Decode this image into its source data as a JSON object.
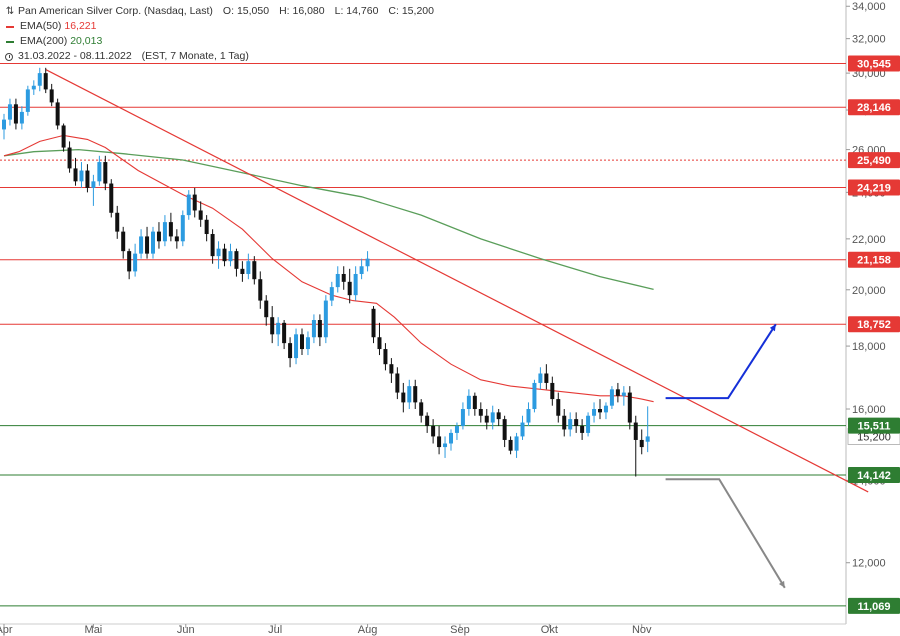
{
  "legend": {
    "instrument": "Pan American Silver Corp. (Nasdaq, Last)",
    "o_label": "O:",
    "o_value": "15,050",
    "h_label": "H:",
    "h_value": "16,080",
    "l_label": "L:",
    "l_value": "14,760",
    "c_label": "C:",
    "c_value": "15,200",
    "ema50_label": "EMA(50)",
    "ema50_value": "16,221",
    "ema200_label": "EMA(200)",
    "ema200_value": "20,013",
    "range": "31.03.2022 - 08.11.2022",
    "range_info": "(EST, 7 Monate, 1 Tag)",
    "icon_chart": "candlestick-icon",
    "icon_clock": "clock-icon"
  },
  "colors": {
    "up": "#2c9be0",
    "down": "#111111",
    "resistance": "#e53935",
    "support": "#2e7d32",
    "ema50": "#e53935",
    "ema200": "#5a9e5a",
    "trend": "#e53935",
    "up_arrow": "#1530d8",
    "down_arrow": "#888888",
    "label_red": "#e53935",
    "label_green": "#2e7d32",
    "axis_text": "#555555"
  },
  "chart_data": {
    "type": "candlestick",
    "title": "Pan American Silver Corp. (Nasdaq, Last)",
    "y_axis_ticks": [
      "34,000",
      "32,000",
      "30,000",
      "28,000",
      "26,000",
      "24,000",
      "22,000",
      "20,000",
      "18,000",
      "16,000",
      "14,000",
      "12,000"
    ],
    "y_ticks": [
      34,
      32,
      30,
      28,
      26,
      24,
      22,
      20,
      18,
      16,
      14,
      12
    ],
    "ylim": [
      10.7,
      34.4
    ],
    "y_scale": "log",
    "x_axis_labels": [
      {
        "label": "Apr",
        "day": 0
      },
      {
        "label": "Mai",
        "day": 30
      },
      {
        "label": "Jun",
        "day": 61
      },
      {
        "label": "Jul",
        "day": 91
      },
      {
        "label": "Aug",
        "day": 122
      },
      {
        "label": "Sep",
        "day": 153
      },
      {
        "label": "Okt",
        "day": 183
      },
      {
        "label": "Nov",
        "day": 214
      }
    ],
    "level_lines": [
      {
        "value": 30.545,
        "label": "30,545",
        "color": "red"
      },
      {
        "value": 28.146,
        "label": "28,146",
        "color": "red"
      },
      {
        "value": 25.49,
        "label": "25,490",
        "color": "red",
        "style": "dotted"
      },
      {
        "value": 24.219,
        "label": "24,219",
        "color": "red"
      },
      {
        "value": 21.158,
        "label": "21,158",
        "color": "red"
      },
      {
        "value": 18.752,
        "label": "18,752",
        "color": "red"
      },
      {
        "value": 15.511,
        "label": "15,511",
        "color": "green"
      },
      {
        "value": 14.142,
        "label": "14,142",
        "color": "green"
      },
      {
        "value": 11.069,
        "label": "11,069",
        "color": "green"
      }
    ],
    "last_price_label": "15,200",
    "last_price": 15.2,
    "trendline": {
      "from": {
        "day": 14,
        "value": 30.2
      },
      "to": {
        "day": 290,
        "value": 13.7
      }
    },
    "ema50": [
      [
        0,
        25.7
      ],
      [
        5,
        25.9
      ],
      [
        12,
        26.4
      ],
      [
        20,
        26.7
      ],
      [
        28,
        26.5
      ],
      [
        34,
        26.1
      ],
      [
        45,
        25.0
      ],
      [
        60,
        23.9
      ],
      [
        70,
        23.3
      ],
      [
        80,
        22.4
      ],
      [
        90,
        21.2
      ],
      [
        100,
        20.3
      ],
      [
        110,
        19.8
      ],
      [
        117,
        19.6
      ],
      [
        125,
        19.5
      ],
      [
        131,
        19.0
      ],
      [
        140,
        18.1
      ],
      [
        150,
        17.4
      ],
      [
        160,
        16.9
      ],
      [
        170,
        16.7
      ],
      [
        180,
        16.6
      ],
      [
        190,
        16.5
      ],
      [
        200,
        16.4
      ],
      [
        208,
        16.4
      ],
      [
        214,
        16.3
      ],
      [
        218,
        16.221
      ]
    ],
    "ema200": [
      [
        0,
        25.7
      ],
      [
        10,
        25.9
      ],
      [
        25,
        26.0
      ],
      [
        40,
        25.8
      ],
      [
        60,
        25.5
      ],
      [
        80,
        24.9
      ],
      [
        100,
        24.3
      ],
      [
        120,
        23.8
      ],
      [
        140,
        23.0
      ],
      [
        160,
        22.0
      ],
      [
        180,
        21.2
      ],
      [
        200,
        20.5
      ],
      [
        218,
        20.013
      ]
    ],
    "arrows": [
      {
        "color": "blue",
        "points": [
          [
            222,
            16.33
          ],
          [
            243,
            16.33
          ],
          [
            259,
            18.75
          ]
        ]
      },
      {
        "color": "grey",
        "points": [
          [
            222,
            14.03
          ],
          [
            240,
            14.03
          ],
          [
            262,
            11.45
          ]
        ]
      }
    ],
    "candles": [
      [
        0,
        27.0,
        27.8,
        26.5,
        27.5
      ],
      [
        2,
        27.5,
        28.6,
        27.2,
        28.3
      ],
      [
        4,
        28.3,
        28.6,
        27.0,
        27.3
      ],
      [
        6,
        27.3,
        28.2,
        27.0,
        27.9
      ],
      [
        8,
        27.9,
        29.3,
        27.7,
        29.1
      ],
      [
        10,
        29.1,
        29.6,
        28.8,
        29.3
      ],
      [
        12,
        29.3,
        30.3,
        29.0,
        30.0
      ],
      [
        14,
        30.0,
        30.3,
        28.9,
        29.1
      ],
      [
        16,
        29.1,
        29.4,
        28.2,
        28.4
      ],
      [
        18,
        28.4,
        28.6,
        27.0,
        27.2
      ],
      [
        20,
        27.2,
        27.3,
        25.9,
        26.1
      ],
      [
        22,
        26.1,
        26.4,
        24.9,
        25.1
      ],
      [
        24,
        25.1,
        25.6,
        24.3,
        24.5
      ],
      [
        26,
        24.5,
        25.4,
        24.2,
        25.0
      ],
      [
        28,
        25.0,
        25.3,
        24.0,
        24.2
      ],
      [
        30,
        24.2,
        24.8,
        23.4,
        24.5
      ],
      [
        32,
        24.5,
        25.7,
        24.3,
        25.4
      ],
      [
        34,
        25.4,
        25.7,
        24.1,
        24.4
      ],
      [
        36,
        24.4,
        24.6,
        22.9,
        23.1
      ],
      [
        38,
        23.1,
        23.4,
        22.0,
        22.3
      ],
      [
        40,
        22.3,
        22.5,
        21.2,
        21.5
      ],
      [
        42,
        21.5,
        21.6,
        20.4,
        20.7
      ],
      [
        44,
        20.7,
        21.8,
        20.5,
        21.4
      ],
      [
        46,
        21.4,
        22.4,
        21.2,
        22.1
      ],
      [
        48,
        22.1,
        22.5,
        21.2,
        21.4
      ],
      [
        50,
        21.4,
        22.5,
        21.2,
        22.3
      ],
      [
        52,
        22.3,
        22.7,
        21.6,
        21.9
      ],
      [
        54,
        21.9,
        23.0,
        21.7,
        22.7
      ],
      [
        56,
        22.7,
        23.1,
        21.9,
        22.1
      ],
      [
        58,
        22.1,
        22.4,
        21.6,
        21.9
      ],
      [
        60,
        21.9,
        23.2,
        21.7,
        23.0
      ],
      [
        62,
        23.0,
        24.1,
        22.8,
        23.9
      ],
      [
        64,
        23.9,
        24.2,
        22.9,
        23.2
      ],
      [
        66,
        23.2,
        23.6,
        22.5,
        22.8
      ],
      [
        68,
        22.8,
        23.0,
        21.9,
        22.2
      ],
      [
        70,
        22.2,
        22.4,
        21.0,
        21.3
      ],
      [
        72,
        21.3,
        21.9,
        20.8,
        21.6
      ],
      [
        74,
        21.6,
        21.8,
        20.9,
        21.1
      ],
      [
        76,
        21.1,
        21.8,
        20.9,
        21.5
      ],
      [
        78,
        21.5,
        21.6,
        20.5,
        20.8
      ],
      [
        80,
        20.8,
        21.1,
        20.3,
        20.6
      ],
      [
        82,
        20.6,
        21.4,
        20.4,
        21.1
      ],
      [
        84,
        21.1,
        21.3,
        20.2,
        20.4
      ],
      [
        86,
        20.4,
        20.7,
        19.3,
        19.6
      ],
      [
        88,
        19.6,
        19.8,
        18.7,
        19.0
      ],
      [
        90,
        19.0,
        19.4,
        18.1,
        18.4
      ],
      [
        92,
        18.4,
        19.0,
        18.0,
        18.8
      ],
      [
        94,
        18.8,
        18.9,
        17.9,
        18.1
      ],
      [
        96,
        18.1,
        18.3,
        17.3,
        17.6
      ],
      [
        98,
        17.6,
        18.6,
        17.4,
        18.4
      ],
      [
        100,
        18.4,
        18.6,
        17.7,
        17.9
      ],
      [
        102,
        17.9,
        18.5,
        17.7,
        18.3
      ],
      [
        104,
        18.3,
        19.1,
        18.1,
        18.9
      ],
      [
        106,
        18.9,
        19.1,
        18.0,
        18.3
      ],
      [
        108,
        18.3,
        19.8,
        18.1,
        19.6
      ],
      [
        110,
        19.6,
        20.3,
        19.4,
        20.1
      ],
      [
        112,
        20.1,
        20.9,
        19.9,
        20.6
      ],
      [
        114,
        20.6,
        20.9,
        20.0,
        20.3
      ],
      [
        116,
        20.3,
        20.8,
        19.5,
        19.8
      ],
      [
        118,
        19.8,
        20.9,
        19.6,
        20.6
      ],
      [
        120,
        20.6,
        21.2,
        20.4,
        20.9
      ],
      [
        122,
        20.9,
        21.5,
        20.7,
        21.2
      ],
      [
        124,
        19.3,
        19.4,
        18.1,
        18.3
      ],
      [
        126,
        18.3,
        18.8,
        17.7,
        17.9
      ],
      [
        128,
        17.9,
        18.1,
        17.2,
        17.4
      ],
      [
        130,
        17.4,
        17.6,
        16.8,
        17.1
      ],
      [
        132,
        17.1,
        17.3,
        16.3,
        16.5
      ],
      [
        134,
        16.5,
        16.8,
        15.9,
        16.2
      ],
      [
        136,
        16.2,
        16.9,
        16.0,
        16.7
      ],
      [
        138,
        16.7,
        16.9,
        16.0,
        16.2
      ],
      [
        140,
        16.2,
        16.3,
        15.6,
        15.8
      ],
      [
        142,
        15.8,
        15.9,
        15.3,
        15.5
      ],
      [
        144,
        15.5,
        15.7,
        15.0,
        15.2
      ],
      [
        146,
        15.2,
        15.5,
        14.7,
        14.9
      ],
      [
        148,
        14.9,
        15.2,
        14.6,
        15.0
      ],
      [
        150,
        15.0,
        15.4,
        14.8,
        15.3
      ],
      [
        152,
        15.3,
        15.6,
        15.1,
        15.5
      ],
      [
        154,
        15.5,
        16.2,
        15.4,
        16.0
      ],
      [
        156,
        16.0,
        16.6,
        15.8,
        16.4
      ],
      [
        158,
        16.4,
        16.5,
        15.8,
        16.0
      ],
      [
        160,
        16.0,
        16.2,
        15.6,
        15.8
      ],
      [
        162,
        15.8,
        16.0,
        15.4,
        15.6
      ],
      [
        164,
        15.6,
        16.1,
        15.4,
        15.9
      ],
      [
        166,
        15.9,
        16.0,
        15.5,
        15.7
      ],
      [
        168,
        15.7,
        15.8,
        14.9,
        15.1
      ],
      [
        170,
        15.1,
        15.2,
        14.7,
        14.8
      ],
      [
        172,
        14.8,
        15.3,
        14.6,
        15.2
      ],
      [
        174,
        15.2,
        15.8,
        15.1,
        15.6
      ],
      [
        176,
        15.6,
        16.2,
        15.5,
        16.0
      ],
      [
        178,
        16.0,
        16.9,
        15.9,
        16.8
      ],
      [
        180,
        16.8,
        17.3,
        16.6,
        17.1
      ],
      [
        182,
        17.1,
        17.4,
        16.6,
        16.8
      ],
      [
        184,
        16.8,
        17.0,
        16.1,
        16.3
      ],
      [
        186,
        16.3,
        16.5,
        15.6,
        15.8
      ],
      [
        188,
        15.8,
        16.0,
        15.2,
        15.4
      ],
      [
        190,
        15.4,
        15.9,
        15.2,
        15.7
      ],
      [
        192,
        15.7,
        15.9,
        15.3,
        15.5
      ],
      [
        194,
        15.5,
        15.7,
        15.1,
        15.3
      ],
      [
        196,
        15.3,
        15.9,
        15.2,
        15.8
      ],
      [
        198,
        15.8,
        16.2,
        15.6,
        16.0
      ],
      [
        200,
        16.0,
        16.3,
        15.7,
        15.9
      ],
      [
        202,
        15.9,
        16.2,
        15.7,
        16.1
      ],
      [
        204,
        16.1,
        16.7,
        16.0,
        16.6
      ],
      [
        206,
        16.6,
        16.8,
        16.2,
        16.4
      ],
      [
        208,
        16.4,
        16.7,
        16.1,
        16.5
      ],
      [
        210,
        16.5,
        16.7,
        15.4,
        15.6
      ],
      [
        212,
        15.6,
        15.8,
        14.1,
        15.1
      ],
      [
        214,
        15.1,
        15.4,
        14.7,
        14.9
      ],
      [
        216,
        15.05,
        16.08,
        14.76,
        15.2
      ]
    ]
  }
}
